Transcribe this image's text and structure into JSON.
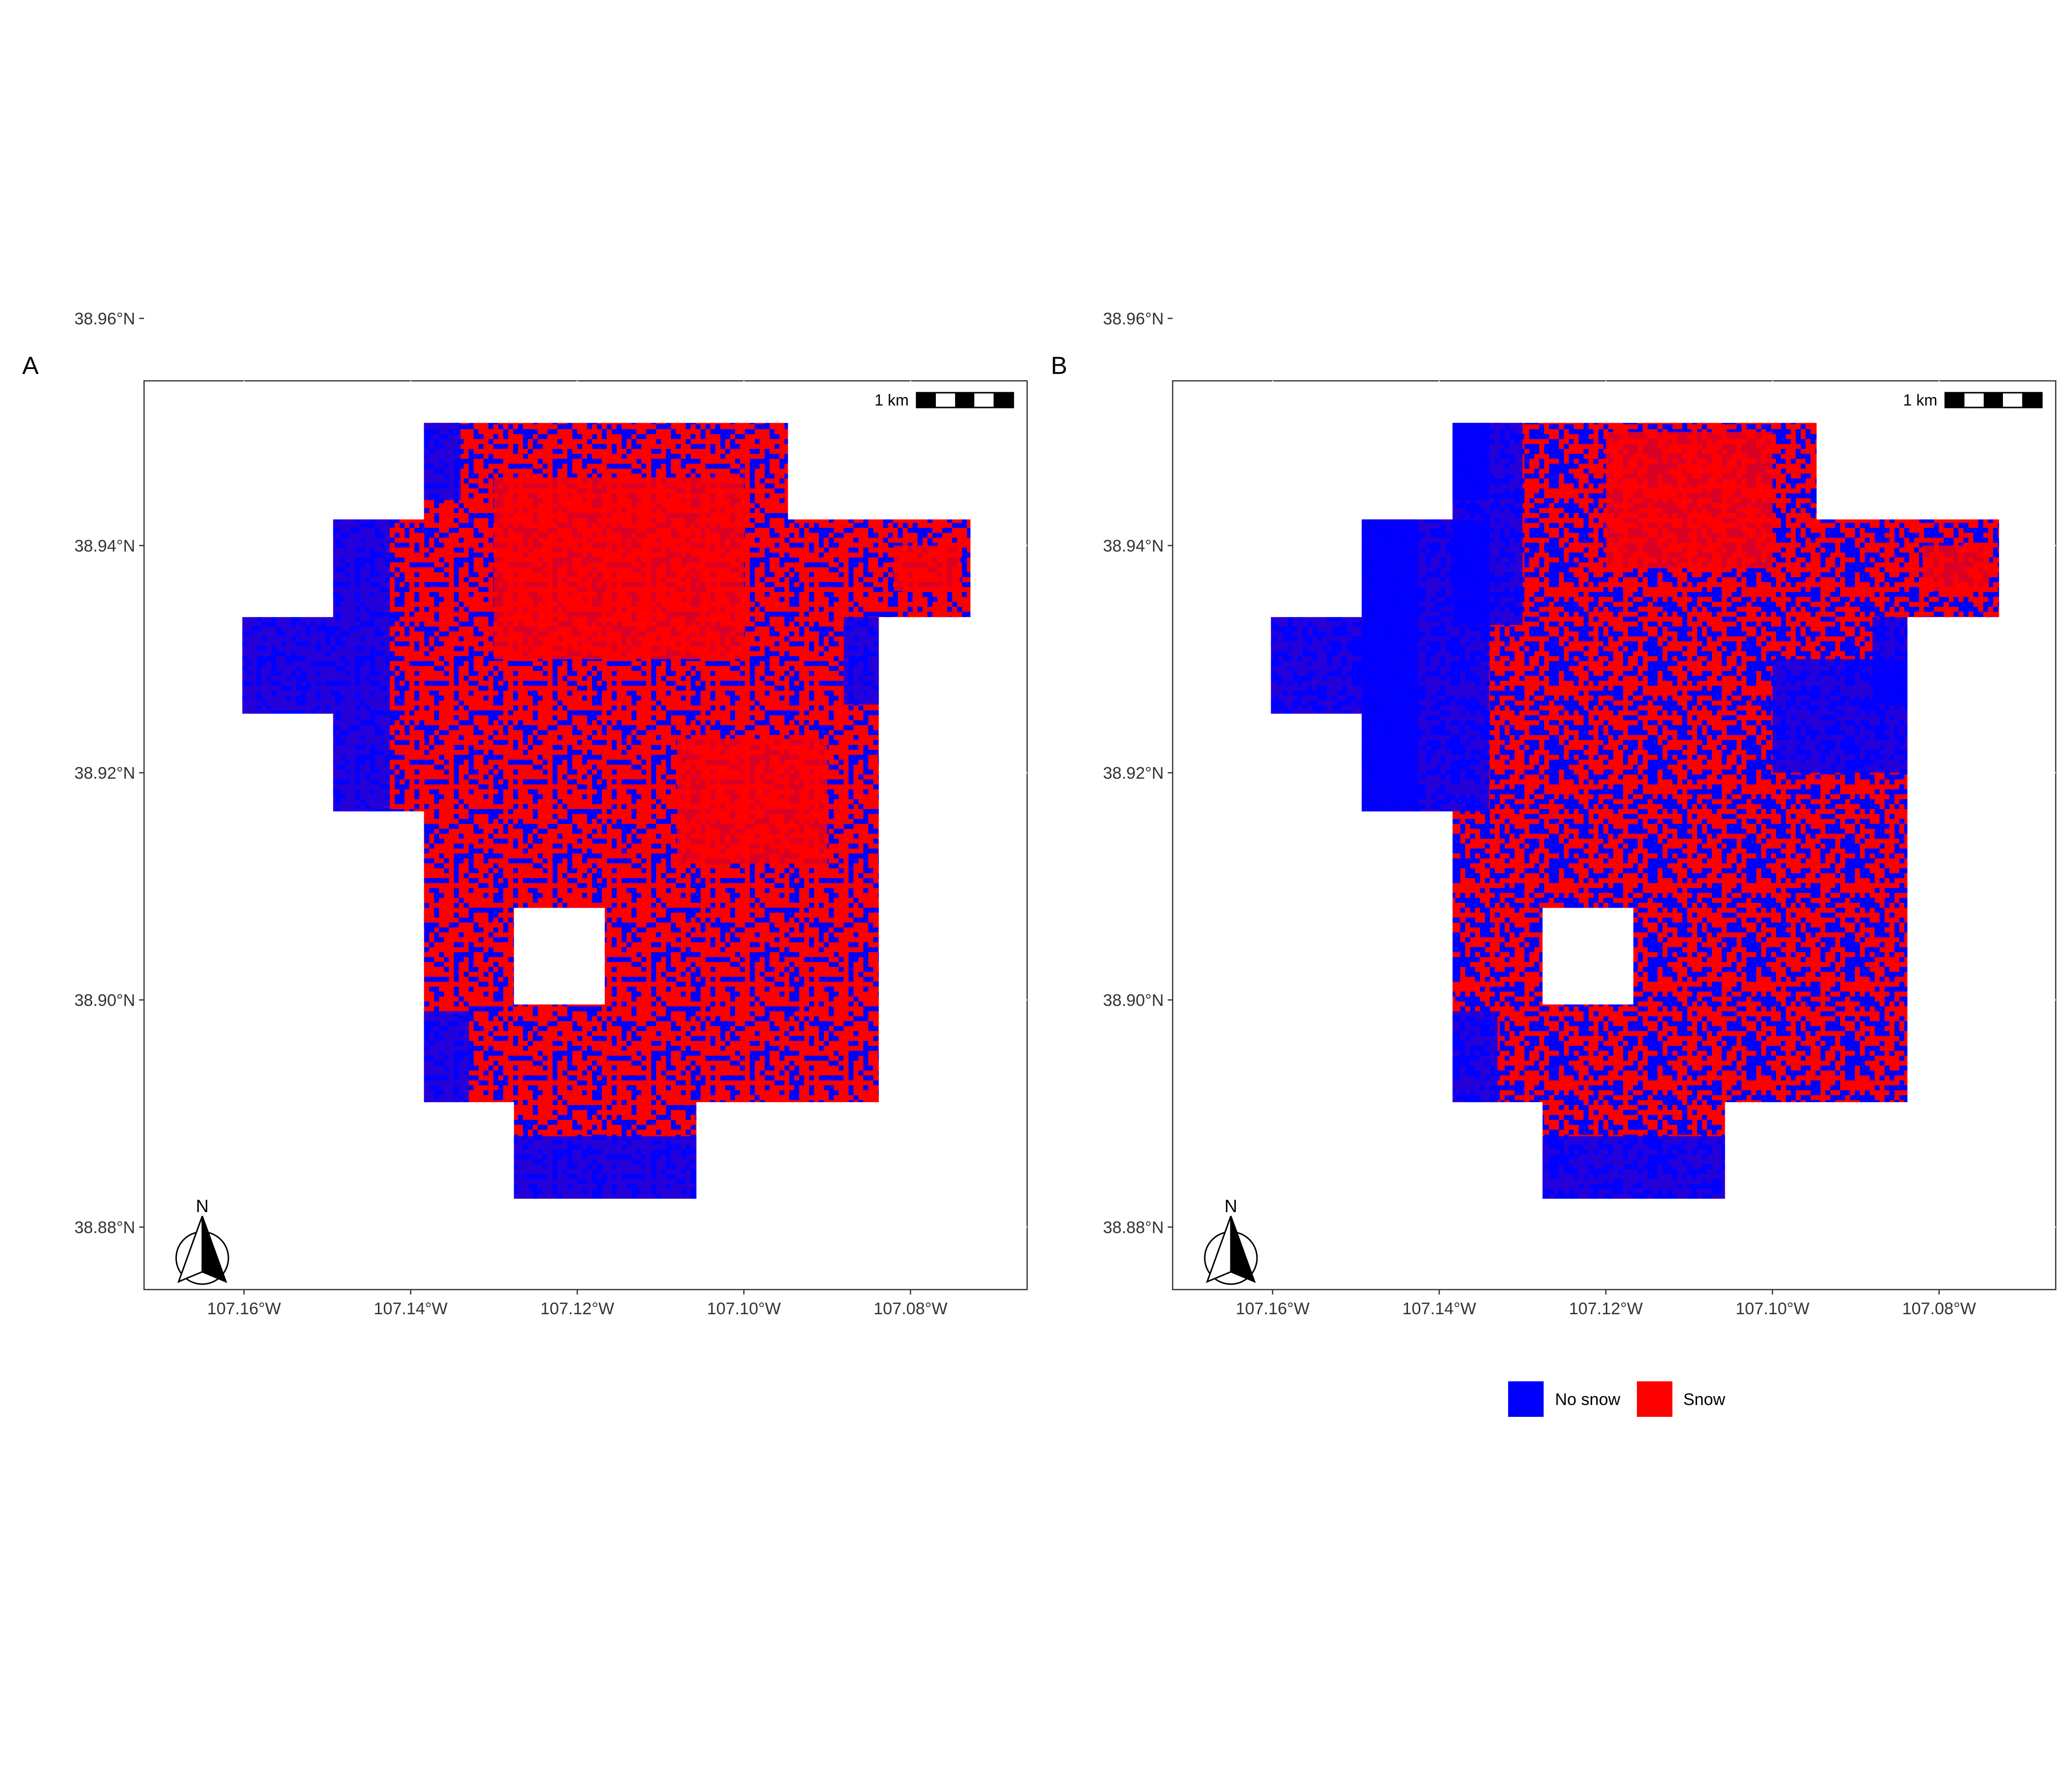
{
  "figure": {
    "colors": {
      "no_snow": "#0000FF",
      "snow": "#FF0000",
      "frame": "#333333"
    },
    "legend": [
      {
        "label": "No snow",
        "color": "#0000FF"
      },
      {
        "label": "Snow",
        "color": "#FF0000"
      }
    ],
    "panels": [
      {
        "id": "A",
        "letter": "A",
        "scalebar_label": "1 km",
        "north_label": "N",
        "snow_fraction": 0.7
      },
      {
        "id": "B",
        "letter": "B",
        "scalebar_label": "1 km",
        "north_label": "N",
        "snow_fraction": 0.58
      }
    ],
    "axes": {
      "x_ticks": [
        "107.16°W",
        "107.14°W",
        "107.12°W",
        "107.10°W",
        "107.08°W"
      ],
      "x_values": [
        -107.16,
        -107.14,
        -107.12,
        -107.1,
        -107.08
      ],
      "y_ticks": [
        "38.96°N",
        "38.94°N",
        "38.92°N",
        "38.90°N",
        "38.88°N"
      ],
      "y_values": [
        38.96,
        38.94,
        38.92,
        38.9,
        38.88
      ],
      "x_range": [
        -107.172,
        -107.066
      ],
      "y_range": [
        38.9545,
        38.8745
      ]
    },
    "study_area_polygon_lonlat": [
      [
        -107.1384,
        38.9508
      ],
      [
        -107.0947,
        38.9508
      ],
      [
        -107.0947,
        38.9423
      ],
      [
        -107.0728,
        38.9423
      ],
      [
        -107.0728,
        38.9337
      ],
      [
        -107.0838,
        38.9337
      ],
      [
        -107.0838,
        38.891
      ],
      [
        -107.1057,
        38.891
      ],
      [
        -107.1057,
        38.8825
      ],
      [
        -107.1276,
        38.8825
      ],
      [
        -107.1276,
        38.891
      ],
      [
        -107.1384,
        38.891
      ],
      [
        -107.1384,
        38.9166
      ],
      [
        -107.1493,
        38.9166
      ],
      [
        -107.1493,
        38.9252
      ],
      [
        -107.1602,
        38.9252
      ],
      [
        -107.1602,
        38.9337
      ],
      [
        -107.1493,
        38.9337
      ],
      [
        -107.1493,
        38.9423
      ],
      [
        -107.1384,
        38.9423
      ]
    ],
    "excluded_block_lonlat": [
      [
        -107.1276,
        38.9081
      ],
      [
        -107.1167,
        38.8996
      ]
    ]
  }
}
